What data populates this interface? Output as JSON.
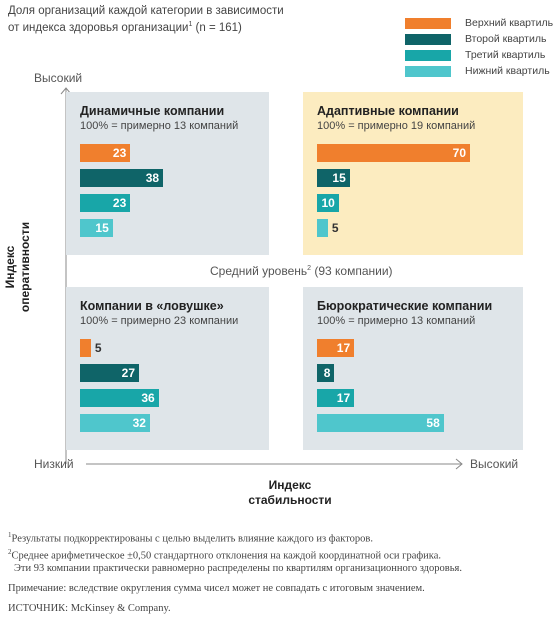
{
  "title": {
    "line1": "Доля организаций каждой категории в зависимости",
    "line2a": "от индекса здоровья организации",
    "line2_sup": "1",
    "line2b": " (n = 161)"
  },
  "legend": [
    {
      "label": "Верхний квартиль",
      "color": "#f07f2d"
    },
    {
      "label": "Второй квартиль",
      "color": "#0f6468"
    },
    {
      "label": "Третий квартиль",
      "color": "#18a6a8"
    },
    {
      "label": "Нижний квартиль",
      "color": "#4fc6cc"
    }
  ],
  "axes": {
    "y_high": "Высокий",
    "y_title_line1": "Индекс",
    "y_title_line2": "оперативности",
    "x_low": "Низкий",
    "x_high": "Высокий",
    "x_title_line1": "Индекс",
    "x_title_line2": "стабильности",
    "middle_a": "Средний уровень",
    "middle_sup": "2",
    "middle_b": " (93 компании)"
  },
  "chart_data": {
    "type": "bar",
    "orientation": "horizontal",
    "xlim": [
      0,
      70
    ],
    "series_names": [
      "Верхний квартиль",
      "Второй квартиль",
      "Третий квартиль",
      "Нижний квартиль"
    ],
    "panels": [
      {
        "id": "dynamic",
        "title": "Динамичные компании",
        "subtitle": "100% = примерно 13 компаний",
        "values": [
          23,
          38,
          23,
          15
        ],
        "background": "#dfe5e9"
      },
      {
        "id": "adaptive",
        "title": "Адаптивные компании",
        "subtitle": "100% = примерно 19 компаний",
        "values": [
          70,
          15,
          10,
          5
        ],
        "background": "#fcecc0"
      },
      {
        "id": "trapped",
        "title": "Компании в «ловушке»",
        "subtitle": "100% = примерно 23 компании",
        "values": [
          5,
          27,
          36,
          32
        ],
        "background": "#dfe5e9"
      },
      {
        "id": "bureaucratic",
        "title": "Бюрократические компании",
        "subtitle": "100% = примерно 13 компаний",
        "values": [
          17,
          8,
          17,
          58
        ],
        "background": "#dfe5e9"
      }
    ]
  },
  "footnotes": {
    "n1_sup": "1",
    "n1": "Результаты подкорректированы с целью выделить влияние каждого из факторов.",
    "n2_sup": "2",
    "n2": "Среднее арифметическое ±0,50 стандартного отклонения на каждой координатной оси графика.",
    "n2b": "Эти 93 компании практически равномерно распределены по квартилям организационного здоровья.",
    "note": "Примечание: вследствие округления сумма чисел может не совпадать с итоговым значением.",
    "source": "ИСТОЧНИК: McKinsey & Company."
  }
}
